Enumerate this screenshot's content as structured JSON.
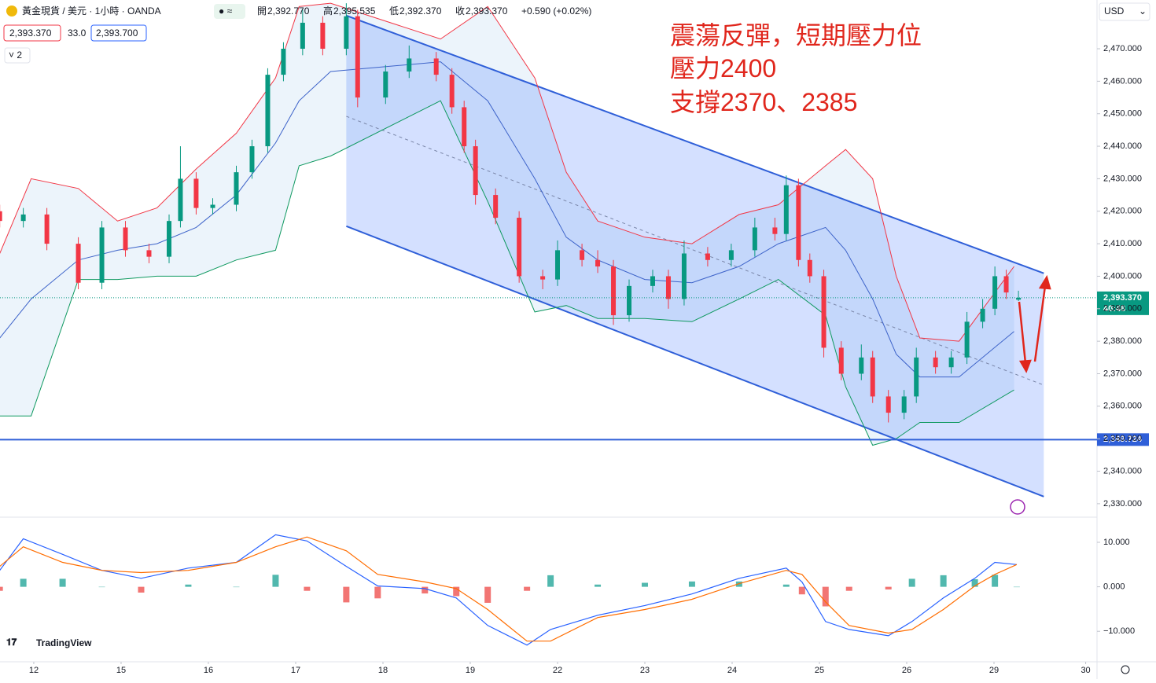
{
  "header": {
    "symbol": "黃金現貨 / 美元 · 1小時 · OANDA",
    "open_label": "開",
    "open": "2,392.770",
    "high_label": "高",
    "high": "2,395.535",
    "low_label": "低",
    "low": "2,392.370",
    "close_label": "收",
    "close": "2,393.370",
    "change": "+0.590 (+0.02%)",
    "sell": "2,393.370",
    "spread": "33.0",
    "buy": "2,393.700",
    "indicators": "2",
    "currency": "USD",
    "logo": "TradingView"
  },
  "annotations": [
    "震蕩反彈，短期壓力位",
    "壓力2400",
    "支撐2370、2385"
  ],
  "chart_data": [
    {
      "type": "candlestick",
      "x": [
        -0.39,
        -0.12,
        0.15,
        0.51,
        0.78,
        1.05,
        1.32,
        1.55,
        1.68,
        1.86,
        2.05,
        2.32,
        2.5,
        2.68,
        2.86,
        3.08,
        3.31,
        3.58,
        3.71,
        4.03,
        4.3,
        4.61,
        4.79,
        4.93,
        5.06,
        5.29,
        5.56,
        5.83,
        6.0,
        6.28,
        6.46,
        6.64,
        6.82,
        7.09,
        7.27,
        7.45,
        7.72,
        7.99,
        8.26,
        8.49,
        8.62,
        8.76,
        8.89,
        9.05,
        9.25,
        9.48,
        9.61,
        9.79,
        9.97,
        10.11,
        10.33,
        10.51,
        10.69,
        10.87,
        11.01,
        11.14,
        11.28
      ],
      "open": [
        2420,
        2417,
        2419,
        2410,
        2398,
        2415,
        2408,
        2406,
        2417,
        2430,
        2421,
        2422,
        2432,
        2440,
        2462,
        2470,
        2478,
        2470,
        2480,
        2455,
        2463,
        2467,
        2462,
        2452,
        2440,
        2425,
        2418,
        2400,
        2399,
        2408,
        2405,
        2403,
        2388,
        2397,
        2400,
        2393,
        2407,
        2405,
        2408,
        2415,
        2413,
        2428,
        2405,
        2400,
        2378,
        2370,
        2375,
        2363,
        2358,
        2363,
        2375,
        2372,
        2375,
        2386,
        2390,
        2400,
        2392.77
      ],
      "high": [
        2422,
        2421,
        2421,
        2412,
        2417,
        2417,
        2410,
        2419,
        2440,
        2432,
        2424,
        2434,
        2442,
        2464,
        2472,
        2482,
        2480,
        2484,
        2482,
        2465,
        2471,
        2469,
        2464,
        2454,
        2442,
        2427,
        2420,
        2402,
        2411,
        2410,
        2408,
        2405,
        2399,
        2402,
        2402,
        2411,
        2409,
        2410,
        2418,
        2418,
        2431,
        2430,
        2407,
        2402,
        2380,
        2379,
        2377,
        2365,
        2365,
        2378,
        2377,
        2377,
        2389,
        2393,
        2403,
        2402,
        2395.535
      ],
      "low": [
        2415,
        2415,
        2408,
        2396,
        2396,
        2406,
        2404,
        2404,
        2415,
        2419,
        2419,
        2420,
        2430,
        2438,
        2460,
        2468,
        2468,
        2468,
        2452,
        2453,
        2461,
        2460,
        2450,
        2438,
        2422,
        2416,
        2398,
        2396,
        2397,
        2403,
        2401,
        2385,
        2386,
        2395,
        2390,
        2391,
        2403,
        2403,
        2406,
        2411,
        2411,
        2403,
        2398,
        2375,
        2368,
        2368,
        2361,
        2355,
        2356,
        2361,
        2370,
        2370,
        2373,
        2384,
        2388,
        2393,
        2392.37
      ],
      "close": [
        2417,
        2419,
        2410,
        2398,
        2415,
        2408,
        2406,
        2417,
        2430,
        2421,
        2422,
        2432,
        2440,
        2462,
        2470,
        2478,
        2470,
        2480,
        2455,
        2463,
        2467,
        2462,
        2452,
        2440,
        2425,
        2418,
        2400,
        2399,
        2408,
        2405,
        2403,
        2388,
        2397,
        2400,
        2393,
        2407,
        2405,
        2408,
        2415,
        2413,
        2428,
        2405,
        2400,
        2378,
        2370,
        2375,
        2363,
        2358,
        2363,
        2375,
        2372,
        2375,
        2386,
        2390,
        2400,
        2395,
        2393.37
      ],
      "up_color": "#089981",
      "down_color": "#f23645",
      "bollinger": {
        "x": [
          -0.39,
          -0.03,
          0.51,
          0.96,
          1.41,
          1.86,
          2.32,
          2.77,
          3.04,
          3.4,
          4.66,
          5.2,
          5.74,
          6.1,
          6.46,
          7.0,
          7.54,
          8.08,
          8.53,
          9.07,
          9.3,
          9.61,
          9.88,
          10.15,
          10.6,
          11.23
        ],
        "upper": [
          2407,
          2430,
          2427,
          2417,
          2421,
          2433,
          2444,
          2461,
          2483,
          2484,
          2473,
          2483,
          2461,
          2432,
          2417,
          2412,
          2410,
          2419,
          2422,
          2434,
          2439,
          2430,
          2400,
          2381,
          2380,
          2403
        ],
        "middle": [
          2381,
          2393,
          2405,
          2408,
          2410,
          2415,
          2425,
          2441,
          2454,
          2463,
          2466,
          2454,
          2430,
          2412,
          2405,
          2399,
          2398,
          2403,
          2410,
          2415,
          2408,
          2393,
          2376,
          2369,
          2369,
          2383
        ],
        "lower": [
          2357,
          2357,
          2399,
          2399,
          2400,
          2400,
          2405,
          2408,
          2434,
          2437,
          2454,
          2423,
          2389,
          2391,
          2387,
          2387,
          2386,
          2393,
          2399,
          2388,
          2366,
          2348,
          2350,
          2355,
          2355,
          2365
        ],
        "upper_color": "#f23645",
        "middle_color": "#3d63c9",
        "lower_color": "#0f9960",
        "fill": "rgba(120,180,230,0.14)"
      },
      "channel": {
        "x": [
          3.58,
          11.57
        ],
        "upper": [
          2480.2,
          2400.9
        ],
        "middle": [
          2449.2,
          2366.5
        ],
        "lower": [
          2415.4,
          2332.2
        ],
        "color": "#2f5fd8",
        "fill": "rgba(41,98,255,0.2)"
      },
      "hline": {
        "value": 2349.724,
        "label": "2,349.724",
        "color": "#2f5fd8"
      },
      "last": {
        "value": 2393.37,
        "label": "2,393.370",
        "countdown": "40:48",
        "color": "#089981"
      },
      "xlim": [
        -0.387,
        12.18
      ],
      "ylim": [
        2326.1,
        2485.0
      ],
      "yticks": [
        {
          "value": 2330,
          "label": "2,330.000"
        },
        {
          "value": 2340,
          "label": "2,340.000"
        },
        {
          "value": 2350,
          "label": "2,350.000"
        },
        {
          "value": 2360,
          "label": "2,360.000"
        },
        {
          "value": 2370,
          "label": "2,370.000"
        },
        {
          "value": 2380,
          "label": "2,380.000"
        },
        {
          "value": 2390,
          "label": "2,390.000"
        },
        {
          "value": 2400,
          "label": "2,400.000"
        },
        {
          "value": 2410,
          "label": "2,410.000"
        },
        {
          "value": 2420,
          "label": "2,420.000"
        },
        {
          "value": 2430,
          "label": "2,430.000"
        },
        {
          "value": 2440,
          "label": "2,440.000"
        },
        {
          "value": 2450,
          "label": "2,450.000"
        },
        {
          "value": 2460,
          "label": "2,460.000"
        },
        {
          "value": 2470,
          "label": "2,470.000"
        }
      ],
      "xticks": [
        {
          "value": 0,
          "label": "12"
        },
        {
          "value": 1,
          "label": "15"
        },
        {
          "value": 2,
          "label": "16"
        },
        {
          "value": 3,
          "label": "17"
        },
        {
          "value": 4,
          "label": "18"
        },
        {
          "value": 5,
          "label": "19"
        },
        {
          "value": 6,
          "label": "22"
        },
        {
          "value": 7,
          "label": "23"
        },
        {
          "value": 8,
          "label": "24"
        },
        {
          "value": 9,
          "label": "25"
        },
        {
          "value": 10,
          "label": "26"
        },
        {
          "value": 11,
          "label": "29"
        },
        {
          "value": 12.05,
          "label": "30"
        }
      ]
    },
    {
      "type": "line",
      "x": [
        -0.39,
        -0.12,
        0.33,
        0.78,
        1.23,
        1.77,
        2.32,
        2.77,
        3.13,
        3.58,
        3.94,
        4.48,
        4.84,
        5.2,
        5.65,
        5.92,
        6.46,
        7.0,
        7.54,
        8.08,
        8.62,
        8.8,
        9.07,
        9.34,
        9.79,
        10.06,
        10.42,
        10.78,
        11.01,
        11.26
      ],
      "series": [
        {
          "color": "#2962ff",
          "values": [
            3.7,
            10.8,
            7.3,
            3.7,
            1.9,
            4.2,
            5.5,
            11.7,
            10.3,
            4.6,
            0.2,
            -0.4,
            -2.5,
            -8.7,
            -13.1,
            -9.6,
            -6.4,
            -4.2,
            -1.6,
            1.9,
            4.2,
            1.1,
            -7.8,
            -9.6,
            -11,
            -7.8,
            -2.5,
            1.9,
            5.5,
            5.0
          ]
        },
        {
          "color": "#ff6d00",
          "values": [
            4.6,
            9,
            5.5,
            3.7,
            3.2,
            3.7,
            5.5,
            9,
            11.2,
            8.1,
            2.8,
            1.1,
            -0.4,
            -5.1,
            -12.2,
            -12.2,
            -6.9,
            -5.1,
            -2.8,
            0.7,
            3.7,
            2.8,
            -3.4,
            -8.7,
            -10.4,
            -9.6,
            -5.1,
            0.2,
            2.8,
            5.0
          ]
        }
      ],
      "histogram": {
        "values": [
          -0.9,
          1.8,
          1.8,
          0,
          -1.3,
          0.5,
          0,
          2.7,
          -0.9,
          -3.5,
          -2.6,
          -1.5,
          -2.1,
          -3.6,
          -0.9,
          2.6,
          0.5,
          0.9,
          1.2,
          1.2,
          0.5,
          -1.7,
          -4.4,
          -0.9,
          -0.6,
          1.8,
          2.6,
          1.7,
          2.7,
          0
        ],
        "up_color": "#26a69a",
        "down_color": "#ef5350"
      },
      "xlim": [
        -0.387,
        12.18
      ],
      "ylim": [
        -16.5,
        15.3
      ],
      "yticks": [
        {
          "value": 10,
          "label": "10.000"
        },
        {
          "value": 0,
          "label": "0.000"
        },
        {
          "value": -10,
          "label": "−10.000"
        }
      ]
    }
  ]
}
